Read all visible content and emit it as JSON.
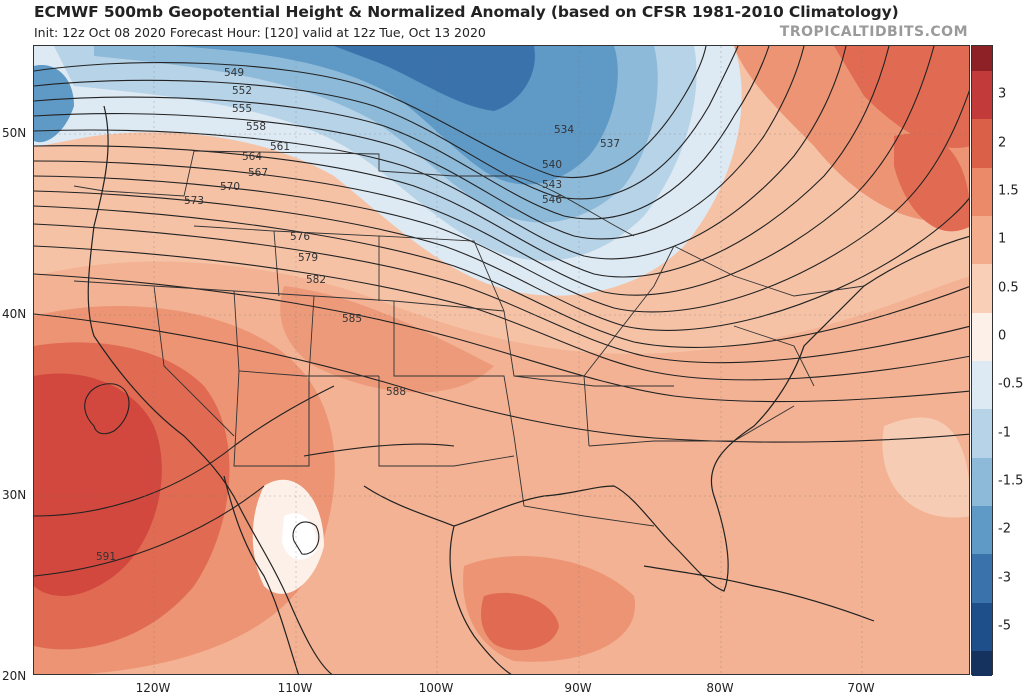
{
  "title": "ECMWF 500mb Geopotential Height & Normalized Anomaly (based on CFSR 1981-2010 Climatology)",
  "subtitle": "Init: 12z Oct 08 2020   Forecast Hour: [120]   valid at 12z Tue, Oct 13 2020",
  "credit": "TROPICALTIDBITS.COM",
  "colorbar": {
    "levels": [
      {
        "label": "3",
        "value": 3,
        "color": "#c23a3a"
      },
      {
        "label": "2",
        "value": 2,
        "color": "#da6048"
      },
      {
        "label": "1.5",
        "value": 1.5,
        "color": "#eb8a68"
      },
      {
        "label": "1",
        "value": 1,
        "color": "#f4ad8c"
      },
      {
        "label": "0.5",
        "value": 0.5,
        "color": "#f9cfb8"
      },
      {
        "label": "0",
        "value": 0,
        "color": "#fdf0e8"
      },
      {
        "label": "-0.5",
        "value": -0.5,
        "color": "#dde9f3"
      },
      {
        "label": "-1",
        "value": -1,
        "color": "#b7d3e8"
      },
      {
        "label": "-1.5",
        "value": -1.5,
        "color": "#8dbad9"
      },
      {
        "label": "-2",
        "value": -2,
        "color": "#5f99c6"
      },
      {
        "label": "-3",
        "value": -3,
        "color": "#3a72ab"
      },
      {
        "label": "-5",
        "value": -5,
        "color": "#1f4f8a"
      }
    ],
    "top_color": "#8e2126",
    "bottom_color": "#15325e"
  },
  "latitudes": [
    "50N",
    "40N",
    "30N",
    "20N"
  ],
  "longitudes": [
    "120W",
    "110W",
    "100W",
    "90W",
    "80W",
    "70W"
  ],
  "contour_labels": [
    "534",
    "537",
    "540",
    "543",
    "546",
    "549",
    "552",
    "555",
    "558",
    "561",
    "564",
    "567",
    "570",
    "573",
    "576",
    "579",
    "582",
    "585",
    "588",
    "591"
  ],
  "anomaly_features": {
    "trough_center": "Great Lakes / Hudson Bay",
    "ridge_center": "Eastern Pacific off California"
  }
}
